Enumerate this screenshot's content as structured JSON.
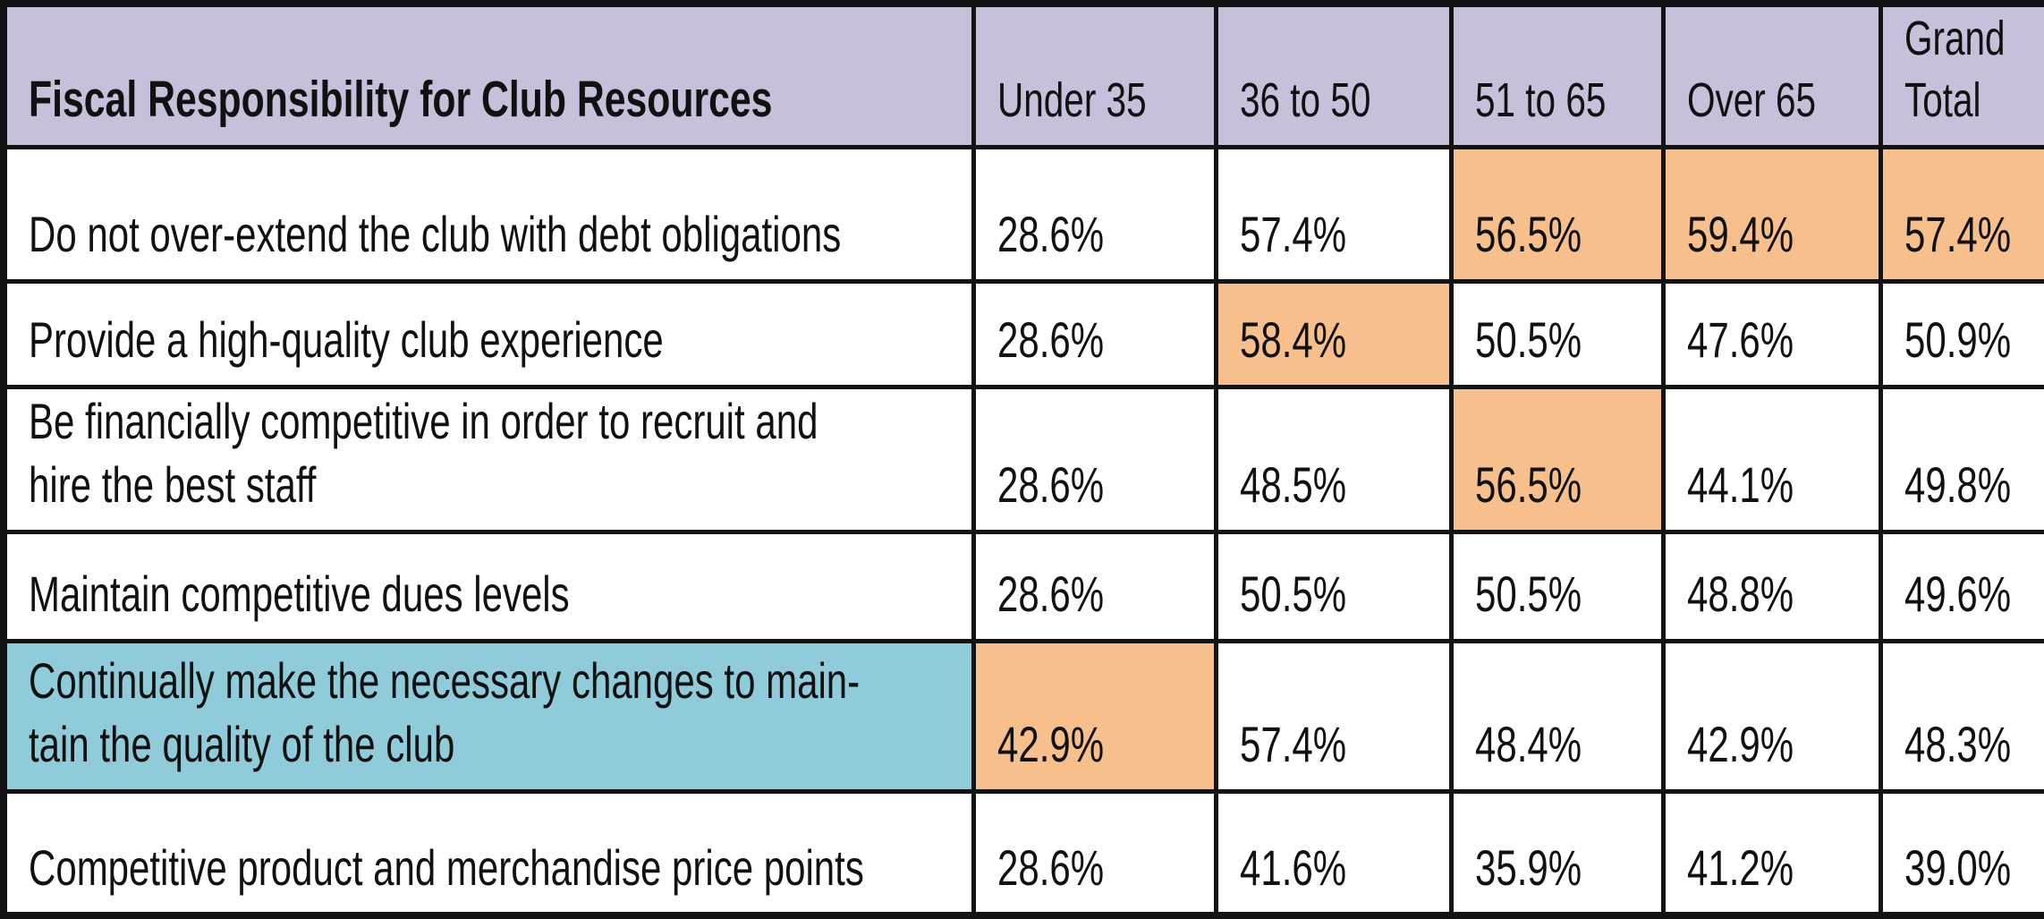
{
  "chart_data": {
    "type": "table",
    "title": "Fiscal Responsibility for Club Resources",
    "columns": [
      "Under 35",
      "36 to 50",
      "51 to 65",
      "Over 65",
      "Grand Total"
    ],
    "unit": "percent",
    "rows": [
      {
        "label": "Do not over-extend the club with debt obligations",
        "values": [
          28.6,
          57.4,
          56.5,
          59.4,
          57.4
        ],
        "highlighted": [
          false,
          false,
          true,
          true,
          true
        ],
        "label_highlighted": false
      },
      {
        "label": "Provide a high-quality club experience",
        "values": [
          28.6,
          58.4,
          50.5,
          47.6,
          50.9
        ],
        "highlighted": [
          false,
          true,
          false,
          false,
          false
        ],
        "label_highlighted": false
      },
      {
        "label": "Be financially competitive in order to recruit and hire the best staff",
        "values": [
          28.6,
          48.5,
          56.5,
          44.1,
          49.8
        ],
        "highlighted": [
          false,
          false,
          true,
          false,
          false
        ],
        "label_highlighted": false
      },
      {
        "label": "Maintain competitive dues levels",
        "values": [
          28.6,
          50.5,
          50.5,
          48.8,
          49.6
        ],
        "highlighted": [
          false,
          false,
          false,
          false,
          false
        ],
        "label_highlighted": false
      },
      {
        "label": "Continually make the necessary changes to maintain the quality of the club",
        "values": [
          42.9,
          57.4,
          48.4,
          42.9,
          48.3
        ],
        "highlighted": [
          true,
          false,
          false,
          false,
          false
        ],
        "label_highlighted": true
      },
      {
        "label": "Competitive product and merchandise price points",
        "values": [
          28.6,
          41.6,
          35.9,
          41.2,
          39.0
        ],
        "highlighted": [
          false,
          false,
          false,
          false,
          false
        ],
        "label_highlighted": false
      }
    ]
  },
  "table": {
    "title": "Fiscal Responsibility for Club Resources",
    "display_columns": [
      "Under 35",
      "36 to 50",
      "51 to 65",
      "Over 65",
      "Grand\nTotal"
    ],
    "display_labels": [
      "Do not over-extend the club with debt obligations",
      "Provide a high-quality club experience",
      "Be financially competitive in order to recruit and\nhire the best staff",
      "Maintain competitive dues levels",
      "Continually make the necessary changes to main-\ntain the quality of the club",
      "Competitive product and merchandise price points"
    ],
    "colors": {
      "header_bg": "#C8C0DB",
      "highlight_bg": "#F6BF8C",
      "label_highlight_bg": "#8FCBD9",
      "border": "#131313",
      "text": "#111111",
      "cell_bg": "#FFFFFF"
    }
  }
}
